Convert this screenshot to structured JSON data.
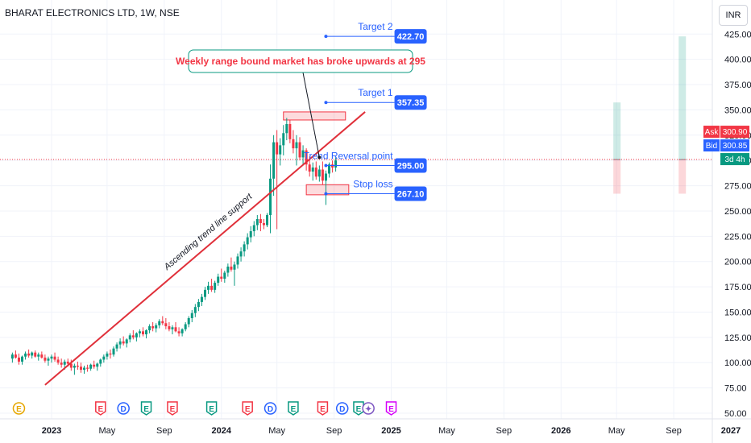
{
  "header": {
    "title": "BHARAT ELECTRONICS LTD, 1W, NSE",
    "currency": "INR"
  },
  "colors": {
    "up": "#089981",
    "down": "#f23645",
    "trend": "#e0303a",
    "level": "#2962ff",
    "grid": "#f0f3fa"
  },
  "chart_data": {
    "type": "candlestick",
    "ylim": [
      50,
      430
    ],
    "yticks": [
      50,
      75,
      100,
      125,
      150,
      175,
      200,
      225,
      250,
      275,
      300,
      325,
      350,
      375,
      400,
      425
    ],
    "ytick_labels": [
      "50.00",
      "75.00",
      "100.00",
      "125.00",
      "150.00",
      "175.00",
      "200.00",
      "225.00",
      "250.00",
      "275.00",
      "300.00",
      "325.00",
      "350.00",
      "375.00",
      "400.00",
      "425.00"
    ],
    "xticks": [
      {
        "label": "2023",
        "t": 0.0
      },
      {
        "label": "May",
        "t": 17.0
      },
      {
        "label": "Sep",
        "t": 34.5
      },
      {
        "label": "2024",
        "t": 52.0
      },
      {
        "label": "May",
        "t": 69.0
      },
      {
        "label": "Sep",
        "t": 86.5
      },
      {
        "label": "2025",
        "t": 104.0
      },
      {
        "label": "May",
        "t": 121.0
      },
      {
        "label": "Sep",
        "t": 138.5
      },
      {
        "label": "2026",
        "t": 156.0
      },
      {
        "label": "May",
        "t": 173.0
      },
      {
        "label": "Sep",
        "t": 190.5
      },
      {
        "label": "2027",
        "t": 208.0
      }
    ],
    "candle_start_t": -12,
    "ohlc": [
      [
        104,
        110,
        100,
        108
      ],
      [
        108,
        112,
        104,
        105
      ],
      [
        105,
        109,
        98,
        101
      ],
      [
        101,
        107,
        98,
        106
      ],
      [
        106,
        111,
        103,
        109
      ],
      [
        109,
        113,
        105,
        107
      ],
      [
        107,
        111,
        104,
        110
      ],
      [
        110,
        112,
        105,
        106
      ],
      [
        106,
        110,
        102,
        108
      ],
      [
        108,
        111,
        104,
        105
      ],
      [
        105,
        108,
        100,
        102
      ],
      [
        102,
        106,
        97,
        104
      ],
      [
        104,
        108,
        100,
        106
      ],
      [
        106,
        110,
        101,
        103
      ],
      [
        103,
        106,
        98,
        100
      ],
      [
        100,
        104,
        95,
        98
      ],
      [
        98,
        103,
        93,
        101
      ],
      [
        101,
        104,
        96,
        99
      ],
      [
        99,
        103,
        92,
        95
      ],
      [
        95,
        99,
        88,
        97
      ],
      [
        97,
        101,
        93,
        96
      ],
      [
        96,
        100,
        90,
        93
      ],
      [
        93,
        97,
        89,
        95
      ],
      [
        95,
        98,
        91,
        94
      ],
      [
        94,
        99,
        92,
        98
      ],
      [
        98,
        102,
        94,
        96
      ],
      [
        96,
        100,
        92,
        99
      ],
      [
        99,
        104,
        96,
        103
      ],
      [
        103,
        108,
        100,
        106
      ],
      [
        106,
        111,
        103,
        109
      ],
      [
        109,
        113,
        104,
        108
      ],
      [
        108,
        116,
        106,
        114
      ],
      [
        114,
        120,
        111,
        118
      ],
      [
        118,
        124,
        114,
        121
      ],
      [
        121,
        126,
        117,
        119
      ],
      [
        119,
        124,
        115,
        123
      ],
      [
        123,
        129,
        120,
        127
      ],
      [
        127,
        132,
        123,
        125
      ],
      [
        125,
        130,
        121,
        129
      ],
      [
        129,
        133,
        125,
        131
      ],
      [
        131,
        135,
        126,
        128
      ],
      [
        128,
        133,
        124,
        132
      ],
      [
        132,
        138,
        129,
        136
      ],
      [
        136,
        140,
        131,
        134
      ],
      [
        134,
        139,
        130,
        137
      ],
      [
        137,
        143,
        134,
        141
      ],
      [
        141,
        146,
        137,
        139
      ],
      [
        139,
        144,
        133,
        136
      ],
      [
        136,
        140,
        131,
        133
      ],
      [
        133,
        137,
        128,
        135
      ],
      [
        135,
        140,
        130,
        131
      ],
      [
        131,
        135,
        126,
        129
      ],
      [
        129,
        134,
        126,
        133
      ],
      [
        133,
        140,
        131,
        138
      ],
      [
        138,
        146,
        135,
        144
      ],
      [
        144,
        152,
        140,
        149
      ],
      [
        149,
        158,
        145,
        155
      ],
      [
        155,
        163,
        151,
        160
      ],
      [
        160,
        168,
        156,
        165
      ],
      [
        165,
        175,
        162,
        172
      ],
      [
        172,
        180,
        168,
        176
      ],
      [
        176,
        183,
        170,
        172
      ],
      [
        172,
        181,
        169,
        179
      ],
      [
        179,
        188,
        176,
        185
      ],
      [
        185,
        193,
        180,
        183
      ],
      [
        183,
        191,
        179,
        189
      ],
      [
        189,
        198,
        185,
        195
      ],
      [
        195,
        204,
        190,
        192
      ],
      [
        192,
        200,
        176,
        197
      ],
      [
        197,
        208,
        193,
        205
      ],
      [
        205,
        214,
        200,
        210
      ],
      [
        210,
        220,
        205,
        217
      ],
      [
        217,
        228,
        212,
        224
      ],
      [
        224,
        235,
        219,
        230
      ],
      [
        230,
        240,
        225,
        236
      ],
      [
        236,
        246,
        231,
        242
      ],
      [
        242,
        247,
        230,
        238
      ],
      [
        238,
        242,
        232,
        236
      ],
      [
        236,
        248,
        234,
        246
      ],
      [
        246,
        296,
        228,
        282
      ],
      [
        282,
        325,
        265,
        318
      ],
      [
        318,
        330,
        232,
        306
      ],
      [
        306,
        322,
        295,
        315
      ],
      [
        315,
        335,
        305,
        327
      ],
      [
        327,
        342,
        320,
        336
      ],
      [
        336,
        340,
        317,
        321
      ],
      [
        321,
        330,
        307,
        312
      ],
      [
        312,
        325,
        295,
        318
      ],
      [
        318,
        323,
        300,
        303
      ],
      [
        303,
        315,
        296,
        310
      ],
      [
        310,
        312,
        290,
        296
      ],
      [
        296,
        304,
        284,
        289
      ],
      [
        289,
        298,
        280,
        293
      ],
      [
        293,
        299,
        281,
        284
      ],
      [
        284,
        295,
        279,
        291
      ],
      [
        291,
        299,
        276,
        280
      ],
      [
        280,
        290,
        256,
        287
      ],
      [
        287,
        298,
        283,
        296
      ],
      [
        296,
        300,
        288,
        293
      ],
      [
        293,
        303,
        289,
        300
      ]
    ],
    "trend_line": {
      "label": "Ascending trend line support",
      "from": {
        "t": -2,
        "y": 78
      },
      "to": {
        "t": 96,
        "y": 348
      }
    },
    "levels": [
      {
        "label": "Target 2",
        "value": "422.70",
        "y": 422.7,
        "t0": 84,
        "t1": 105
      },
      {
        "label": "Target 1",
        "value": "357.35",
        "y": 357.35,
        "t0": 84,
        "t1": 105
      },
      {
        "label": "Trend Reversal point",
        "value": "295.00",
        "y": 295,
        "t0": 84,
        "t1": 105
      },
      {
        "label": "Stop loss",
        "value": "267.10",
        "y": 267.1,
        "t0": 84,
        "t1": 105
      }
    ],
    "boxes": [
      {
        "t0": 71,
        "t1": 90,
        "y0": 340,
        "y1": 348
      },
      {
        "t0": 78,
        "t1": 91,
        "y0": 266,
        "y1": 276
      }
    ],
    "callout": {
      "text": "Weekly range bound market has broke upwards at 295",
      "point": {
        "t": 82,
        "y": 303
      }
    },
    "current_line_y": 300.9,
    "price_tags": [
      {
        "label": "Ask",
        "value": "300.90",
        "color": "#f23645"
      },
      {
        "label": "Bid",
        "value": "300.85",
        "color": "#2962ff"
      },
      {
        "label": "",
        "value": "3d 4h",
        "color": "#089981"
      }
    ],
    "projections": [
      {
        "t": 173,
        "up_to": 357.35,
        "down_to": 267.1,
        "base": 300.9
      },
      {
        "t": 193,
        "up_to": 422.7,
        "down_to": 267.1,
        "base": 300.9
      }
    ],
    "event_markers": [
      {
        "glyph": "E",
        "t": -10,
        "color": "#e6a700",
        "shape": "circle"
      },
      {
        "glyph": "E",
        "t": 15,
        "color": "#f23645",
        "shape": "pent"
      },
      {
        "glyph": "D",
        "t": 22,
        "color": "#2962ff",
        "shape": "circle"
      },
      {
        "glyph": "E",
        "t": 29,
        "color": "#089981",
        "shape": "pent"
      },
      {
        "glyph": "E",
        "t": 37,
        "color": "#f23645",
        "shape": "pent"
      },
      {
        "glyph": "E",
        "t": 49,
        "color": "#089981",
        "shape": "pent"
      },
      {
        "glyph": "E",
        "t": 60,
        "color": "#f23645",
        "shape": "pent"
      },
      {
        "glyph": "D",
        "t": 67,
        "color": "#2962ff",
        "shape": "circle"
      },
      {
        "glyph": "E",
        "t": 74,
        "color": "#089981",
        "shape": "pent"
      },
      {
        "glyph": "E",
        "t": 83,
        "color": "#f23645",
        "shape": "pent"
      },
      {
        "glyph": "D",
        "t": 89,
        "color": "#2962ff",
        "shape": "circle"
      },
      {
        "glyph": "E",
        "t": 94,
        "color": "#089981",
        "shape": "pent"
      },
      {
        "glyph": "✦",
        "t": 97,
        "color": "#7e57c2",
        "shape": "circle"
      },
      {
        "glyph": "E",
        "t": 104,
        "color": "#d500f9",
        "shape": "pent"
      }
    ]
  }
}
